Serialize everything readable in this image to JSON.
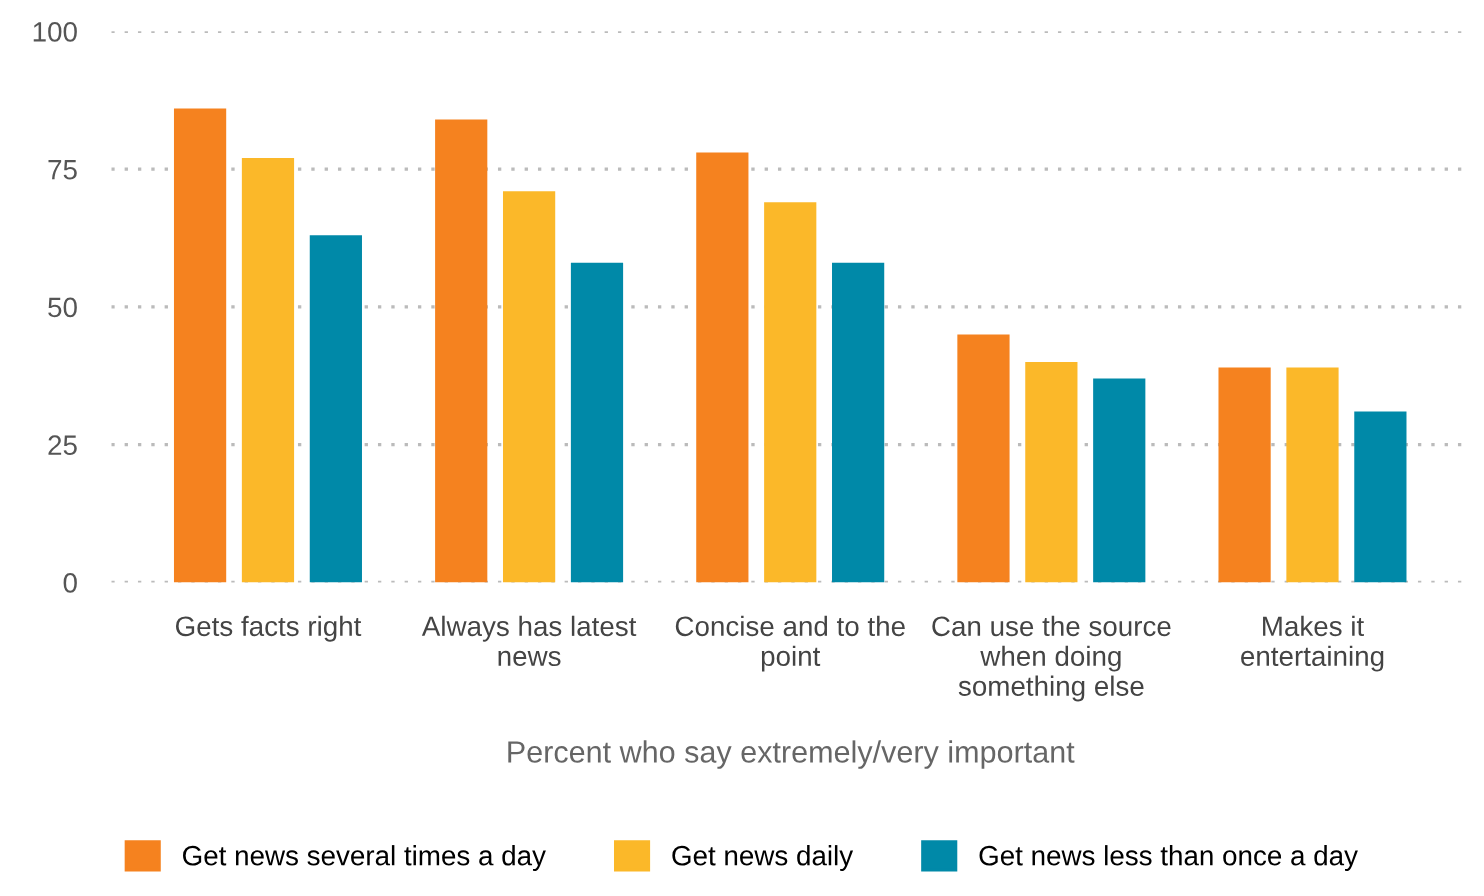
{
  "chart_data": {
    "type": "bar",
    "categories": [
      "Gets facts right",
      "Always has latest\nnews",
      "Concise and to the\npoint",
      "Can use the source\nwhen doing\nsomething else",
      "Makes it\nentertaining"
    ],
    "series": [
      {
        "name": "Get news several times a day",
        "color": "#f5821f",
        "values": [
          86,
          84,
          78,
          45,
          39
        ]
      },
      {
        "name": "Get news daily",
        "color": "#fbb829",
        "values": [
          77,
          71,
          69,
          40,
          39
        ]
      },
      {
        "name": "Get news less than once a day",
        "color": "#0089a8",
        "values": [
          63,
          58,
          58,
          37,
          31
        ]
      }
    ],
    "xlabel": "Percent who say extremely/very important",
    "ylim": [
      0,
      100
    ],
    "yticks": [
      0,
      25,
      50,
      75,
      100
    ],
    "grid": "y",
    "legend": "bottom"
  }
}
